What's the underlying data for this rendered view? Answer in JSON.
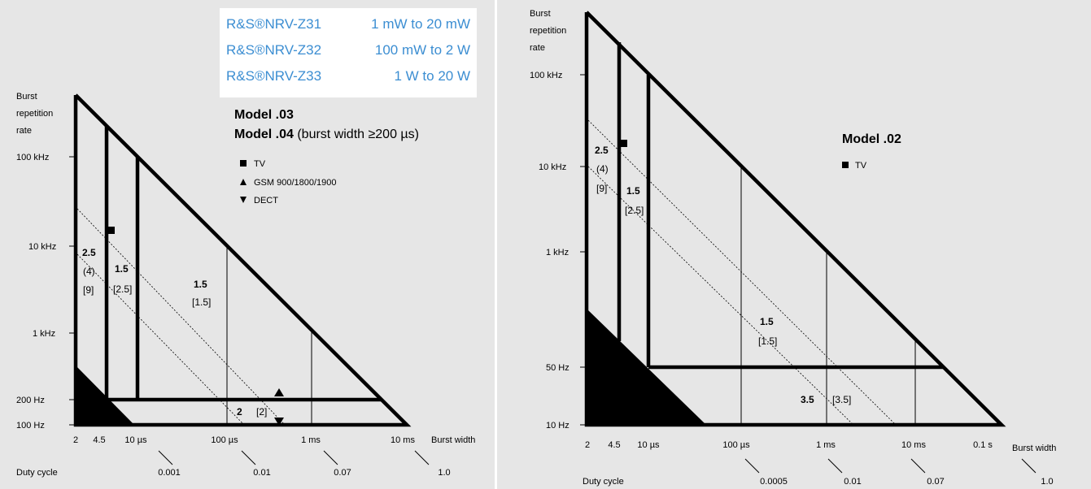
{
  "colors": {
    "accent": "#3c8ed2",
    "panel_bg": "#e6e6e6",
    "ink": "#000000"
  },
  "models_table": [
    {
      "name": "R&S®NRV-Z31",
      "range": "1 mW to 20 mW"
    },
    {
      "name": "R&S®NRV-Z32",
      "range": "100 mW to 2 W"
    },
    {
      "name": "R&S®NRV-Z33",
      "range": "1 W to 20 W"
    }
  ],
  "chart_data": [
    {
      "type": "area",
      "title_line1": "Model .03",
      "title_line2_bold": "Model .04",
      "title_line2_rest": " (burst width ≥200 µs)",
      "ylabel": [
        "Burst",
        "repetition",
        "rate"
      ],
      "xlabel": "Burst width",
      "duty_label": "Duty cycle",
      "y_ticks": [
        "100 kHz",
        "10 kHz",
        "1 kHz",
        "200 Hz",
        "100 Hz"
      ],
      "x_ticks": [
        "2",
        "4.5",
        "10 µs",
        "100 µs",
        "1 ms",
        "10 ms"
      ],
      "duty_ticks": [
        "0.001",
        "0.01",
        "0.07",
        "1.0"
      ],
      "legend": [
        {
          "icon": "square-icon",
          "label": "TV"
        },
        {
          "icon": "triangle-up-icon",
          "label": "GSM 900/1800/1900"
        },
        {
          "icon": "triangle-down-icon",
          "label": "DECT"
        }
      ],
      "region_labels": [
        {
          "bold": "2.5",
          "paren": "(4)",
          "bracket": "[9]"
        },
        {
          "bold": "1.5",
          "bracket": "[2.5]"
        },
        {
          "bold": "1.5",
          "bracket": "[1.5]"
        },
        {
          "bold": "2",
          "bracket": "[2]"
        }
      ]
    },
    {
      "type": "area",
      "title_line1": "Model .02",
      "ylabel": [
        "Burst",
        "repetition",
        "rate"
      ],
      "xlabel": "Burst width",
      "duty_label": "Duty cycle",
      "y_ticks": [
        "100 kHz",
        "10 kHz",
        "1 kHz",
        "50 Hz",
        "10 Hz"
      ],
      "x_ticks": [
        "2",
        "4.5",
        "10 µs",
        "100 µs",
        "1 ms",
        "10 ms",
        "0.1 s"
      ],
      "duty_ticks": [
        "0.0005",
        "0.01",
        "0.07",
        "1.0"
      ],
      "legend": [
        {
          "icon": "square-icon",
          "label": "TV"
        }
      ],
      "region_labels": [
        {
          "bold": "2.5",
          "paren": "(4)",
          "bracket": "[9]"
        },
        {
          "bold": "1.5",
          "bracket": "[2.5]"
        },
        {
          "bold": "1.5",
          "bracket": "[1.5]"
        },
        {
          "bold": "3.5",
          "bracket": "[3.5]"
        }
      ]
    }
  ]
}
